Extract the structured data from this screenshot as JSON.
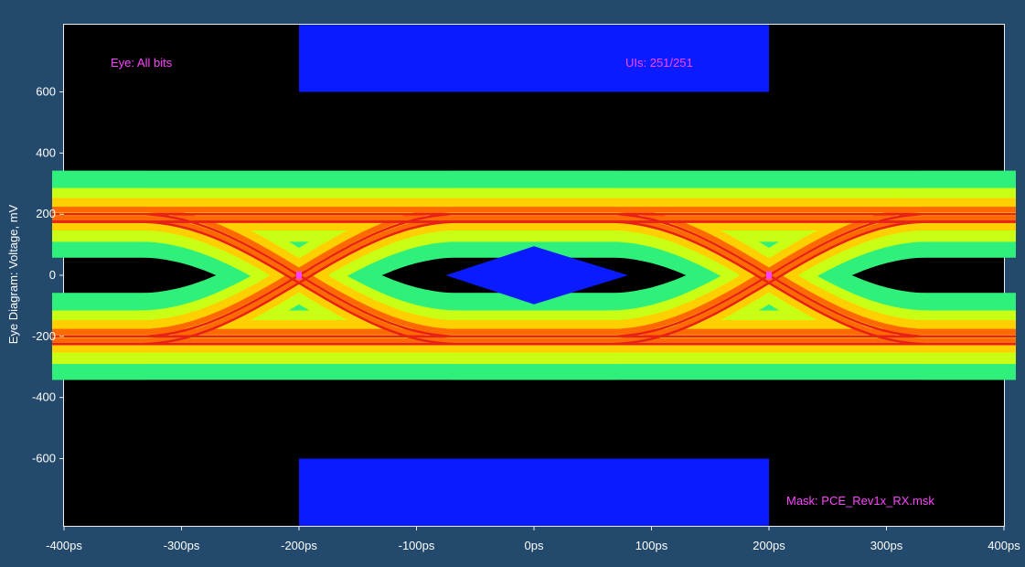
{
  "chart_data": {
    "type": "eye-diagram",
    "ylabel": "Eye Diagram: Voltage, mV",
    "xlim": [
      -400,
      400
    ],
    "ylim": [
      -820,
      820
    ],
    "x_ticks": [
      {
        "value": -400,
        "label": "-400ps"
      },
      {
        "value": -300,
        "label": "-300ps"
      },
      {
        "value": -200,
        "label": "-200ps"
      },
      {
        "value": -100,
        "label": "-100ps"
      },
      {
        "value": 0,
        "label": "0ps"
      },
      {
        "value": 100,
        "label": "100ps"
      },
      {
        "value": 200,
        "label": "200ps"
      },
      {
        "value": 300,
        "label": "300ps"
      },
      {
        "value": 400,
        "label": "400ps"
      }
    ],
    "y_ticks": [
      {
        "value": 600,
        "label": "600"
      },
      {
        "value": 400,
        "label": "400"
      },
      {
        "value": 200,
        "label": "200"
      },
      {
        "value": 0,
        "label": "0"
      },
      {
        "value": -200,
        "label": "-200"
      },
      {
        "value": -400,
        "label": "-400"
      },
      {
        "value": -600,
        "label": "-600"
      }
    ],
    "annotations": {
      "eye_label": "Eye: All bits",
      "uis_label": "UIs: 251/251",
      "mask_label": "Mask: PCE_Rev1x_RX.msk"
    },
    "unit_interval_ps": 400,
    "crossing_points_ps": [
      -200,
      200
    ],
    "levels_mv": {
      "high_mean": 200,
      "low_mean": -200,
      "outer_max": 340,
      "outer_min": -340
    },
    "mask": {
      "top_rect": {
        "x": [
          -200,
          200
        ],
        "y": [
          600,
          820
        ]
      },
      "bottom_rect": {
        "x": [
          -200,
          200
        ],
        "y": [
          -820,
          -600
        ]
      },
      "center_diamond": [
        [
          -75,
          0
        ],
        [
          0,
          95
        ],
        [
          80,
          0
        ],
        [
          0,
          -95
        ]
      ]
    },
    "colors": {
      "background": "#234a6c",
      "plot": "#000000",
      "mask": "#0a1cff",
      "label": "#ff44ff",
      "crossing": "#ff40ff",
      "density": [
        "#00b9b9",
        "#2ef07a",
        "#c8ff14",
        "#ffd000",
        "#ff6a00",
        "#e8201a"
      ]
    },
    "grid": false,
    "legend": "none"
  }
}
